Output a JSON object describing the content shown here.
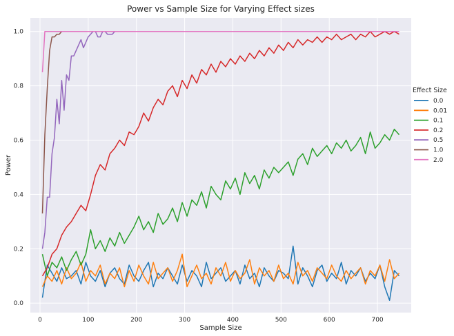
{
  "chart_data": {
    "type": "line",
    "title": "Power vs Sample Size for Varying Effect sizes",
    "xlabel": "Sample Size",
    "ylabel": "Power",
    "xlim": [
      -20,
      770
    ],
    "ylim": [
      -0.035,
      1.05
    ],
    "xticks": [
      0,
      100,
      200,
      300,
      400,
      500,
      600,
      700
    ],
    "yticks": [
      0.0,
      0.2,
      0.4,
      0.6,
      0.8,
      1.0
    ],
    "ytick_labels": [
      "0.0",
      "0.2",
      "0.4",
      "0.6",
      "0.8",
      "1.0"
    ],
    "grid": true,
    "legend": {
      "title": "Effect Size",
      "placement": "center-right-outside"
    },
    "series": [
      {
        "name": "0.0",
        "color": "#1f77b4",
        "x": [
          5,
          15,
          25,
          35,
          45,
          55,
          65,
          75,
          85,
          95,
          105,
          115,
          125,
          135,
          145,
          155,
          165,
          175,
          185,
          195,
          205,
          215,
          225,
          235,
          245,
          255,
          265,
          275,
          285,
          295,
          305,
          315,
          325,
          335,
          345,
          355,
          365,
          375,
          385,
          395,
          405,
          415,
          425,
          435,
          445,
          455,
          465,
          475,
          485,
          495,
          505,
          515,
          525,
          535,
          545,
          555,
          565,
          575,
          585,
          595,
          605,
          615,
          625,
          635,
          645,
          655,
          665,
          675,
          685,
          695,
          705,
          715,
          725,
          735,
          745
        ],
        "y": [
          0.02,
          0.14,
          0.11,
          0.08,
          0.13,
          0.09,
          0.1,
          0.12,
          0.07,
          0.15,
          0.1,
          0.08,
          0.12,
          0.06,
          0.11,
          0.13,
          0.09,
          0.07,
          0.14,
          0.1,
          0.08,
          0.12,
          0.15,
          0.06,
          0.11,
          0.09,
          0.13,
          0.1,
          0.07,
          0.14,
          0.08,
          0.12,
          0.1,
          0.06,
          0.15,
          0.09,
          0.11,
          0.13,
          0.08,
          0.1,
          0.12,
          0.07,
          0.14,
          0.09,
          0.11,
          0.06,
          0.13,
          0.1,
          0.08,
          0.12,
          0.11,
          0.09,
          0.21,
          0.07,
          0.13,
          0.1,
          0.06,
          0.12,
          0.14,
          0.08,
          0.11,
          0.09,
          0.15,
          0.07,
          0.12,
          0.1,
          0.13,
          0.08,
          0.11,
          0.09,
          0.14,
          0.06,
          0.01,
          0.12,
          0.1
        ]
      },
      {
        "name": "0.01",
        "color": "#ff7f0e",
        "x": [
          5,
          15,
          25,
          35,
          45,
          55,
          65,
          75,
          85,
          95,
          105,
          115,
          125,
          135,
          145,
          155,
          165,
          175,
          185,
          195,
          205,
          215,
          225,
          235,
          245,
          255,
          265,
          275,
          285,
          295,
          305,
          315,
          325,
          335,
          345,
          355,
          365,
          375,
          385,
          395,
          405,
          415,
          425,
          435,
          445,
          455,
          465,
          475,
          485,
          495,
          505,
          515,
          525,
          535,
          545,
          555,
          565,
          575,
          585,
          595,
          605,
          615,
          625,
          635,
          645,
          655,
          665,
          675,
          685,
          695,
          705,
          715,
          725,
          735,
          745
        ],
        "y": [
          0.06,
          0.1,
          0.08,
          0.12,
          0.07,
          0.13,
          0.09,
          0.11,
          0.15,
          0.08,
          0.12,
          0.1,
          0.14,
          0.07,
          0.11,
          0.09,
          0.13,
          0.06,
          0.12,
          0.08,
          0.14,
          0.1,
          0.07,
          0.15,
          0.09,
          0.11,
          0.13,
          0.08,
          0.12,
          0.18,
          0.06,
          0.1,
          0.14,
          0.09,
          0.11,
          0.07,
          0.13,
          0.1,
          0.15,
          0.08,
          0.12,
          0.09,
          0.11,
          0.16,
          0.07,
          0.13,
          0.1,
          0.12,
          0.08,
          0.14,
          0.09,
          0.11,
          0.07,
          0.15,
          0.1,
          0.12,
          0.08,
          0.13,
          0.11,
          0.09,
          0.14,
          0.1,
          0.08,
          0.12,
          0.09,
          0.11,
          0.13,
          0.07,
          0.12,
          0.1,
          0.14,
          0.08,
          0.16,
          0.09,
          0.11
        ]
      },
      {
        "name": "0.1",
        "color": "#2ca02c",
        "x": [
          5,
          15,
          25,
          35,
          45,
          55,
          65,
          75,
          85,
          95,
          105,
          115,
          125,
          135,
          145,
          155,
          165,
          175,
          185,
          195,
          205,
          215,
          225,
          235,
          245,
          255,
          265,
          275,
          285,
          295,
          305,
          315,
          325,
          335,
          345,
          355,
          365,
          375,
          385,
          395,
          405,
          415,
          425,
          435,
          445,
          455,
          465,
          475,
          485,
          495,
          505,
          515,
          525,
          535,
          545,
          555,
          565,
          575,
          585,
          595,
          605,
          615,
          625,
          635,
          645,
          655,
          665,
          675,
          685,
          695,
          705,
          715,
          725,
          735,
          745
        ],
        "y": [
          0.18,
          0.1,
          0.15,
          0.13,
          0.17,
          0.12,
          0.16,
          0.19,
          0.14,
          0.18,
          0.27,
          0.2,
          0.23,
          0.19,
          0.24,
          0.21,
          0.26,
          0.22,
          0.25,
          0.28,
          0.32,
          0.27,
          0.3,
          0.26,
          0.33,
          0.29,
          0.31,
          0.35,
          0.3,
          0.37,
          0.32,
          0.38,
          0.36,
          0.41,
          0.35,
          0.43,
          0.4,
          0.38,
          0.45,
          0.42,
          0.46,
          0.4,
          0.48,
          0.44,
          0.47,
          0.42,
          0.49,
          0.46,
          0.5,
          0.48,
          0.5,
          0.52,
          0.47,
          0.53,
          0.55,
          0.51,
          0.57,
          0.54,
          0.56,
          0.58,
          0.55,
          0.59,
          0.57,
          0.6,
          0.56,
          0.58,
          0.61,
          0.55,
          0.63,
          0.57,
          0.59,
          0.62,
          0.6,
          0.64,
          0.62
        ]
      },
      {
        "name": "0.2",
        "color": "#d62728",
        "x": [
          5,
          15,
          25,
          35,
          45,
          55,
          65,
          75,
          85,
          95,
          105,
          115,
          125,
          135,
          145,
          155,
          165,
          175,
          185,
          195,
          205,
          215,
          225,
          235,
          245,
          255,
          265,
          275,
          285,
          295,
          305,
          315,
          325,
          335,
          345,
          355,
          365,
          375,
          385,
          395,
          405,
          415,
          425,
          435,
          445,
          455,
          465,
          475,
          485,
          495,
          505,
          515,
          525,
          535,
          545,
          555,
          565,
          575,
          585,
          595,
          605,
          615,
          625,
          635,
          645,
          655,
          665,
          675,
          685,
          695,
          705,
          715,
          725,
          735,
          745
        ],
        "y": [
          0.1,
          0.13,
          0.18,
          0.2,
          0.25,
          0.28,
          0.3,
          0.33,
          0.36,
          0.34,
          0.4,
          0.47,
          0.51,
          0.49,
          0.55,
          0.57,
          0.6,
          0.58,
          0.63,
          0.62,
          0.65,
          0.7,
          0.67,
          0.72,
          0.75,
          0.73,
          0.78,
          0.8,
          0.76,
          0.82,
          0.79,
          0.84,
          0.81,
          0.86,
          0.84,
          0.88,
          0.85,
          0.89,
          0.87,
          0.9,
          0.88,
          0.91,
          0.89,
          0.92,
          0.9,
          0.93,
          0.91,
          0.94,
          0.92,
          0.95,
          0.93,
          0.96,
          0.94,
          0.97,
          0.95,
          0.97,
          0.96,
          0.98,
          0.96,
          0.98,
          0.97,
          0.99,
          0.97,
          0.98,
          0.99,
          0.97,
          0.99,
          0.98,
          1.0,
          0.98,
          0.99,
          1.0,
          0.99,
          1.0,
          0.99
        ]
      },
      {
        "name": "0.5",
        "color": "#9467bd",
        "x": [
          5,
          10,
          15,
          20,
          25,
          30,
          35,
          40,
          45,
          50,
          55,
          60,
          65,
          70,
          75,
          80,
          85,
          90,
          95,
          100,
          105,
          110,
          115,
          120,
          125,
          130,
          135,
          140,
          145,
          150,
          155,
          160,
          165,
          170,
          175,
          180,
          190,
          200,
          250,
          300,
          350,
          400,
          450,
          500,
          550,
          600,
          650,
          700,
          745
        ],
        "y": [
          0.2,
          0.26,
          0.39,
          0.39,
          0.55,
          0.61,
          0.75,
          0.66,
          0.82,
          0.71,
          0.84,
          0.82,
          0.91,
          0.91,
          0.93,
          0.95,
          0.97,
          0.94,
          0.96,
          0.98,
          0.99,
          1.0,
          1.0,
          0.98,
          0.98,
          1.0,
          1.0,
          0.99,
          0.99,
          0.99,
          1.0,
          1.0,
          1.0,
          1.0,
          1.0,
          1.0,
          1.0,
          1.0,
          1.0,
          1.0,
          1.0,
          1.0,
          1.0,
          1.0,
          1.0,
          1.0,
          1.0,
          1.0,
          1.0
        ]
      },
      {
        "name": "1.0",
        "color": "#8c564b",
        "x": [
          5,
          10,
          15,
          20,
          25,
          30,
          35,
          40,
          45,
          50,
          55,
          60,
          70,
          80,
          100,
          150,
          200,
          300,
          400,
          500,
          600,
          700,
          745
        ],
        "y": [
          0.33,
          0.62,
          0.79,
          0.93,
          0.98,
          0.98,
          0.99,
          0.99,
          1.0,
          1.0,
          1.0,
          1.0,
          1.0,
          1.0,
          1.0,
          1.0,
          1.0,
          1.0,
          1.0,
          1.0,
          1.0,
          1.0,
          1.0
        ]
      },
      {
        "name": "2.0",
        "color": "#e377c2",
        "x": [
          5,
          10,
          15,
          20,
          30,
          50,
          100,
          200,
          300,
          400,
          500,
          600,
          700,
          745
        ],
        "y": [
          0.85,
          1.0,
          1.0,
          1.0,
          1.0,
          1.0,
          1.0,
          1.0,
          1.0,
          1.0,
          1.0,
          1.0,
          1.0,
          1.0
        ]
      }
    ]
  }
}
